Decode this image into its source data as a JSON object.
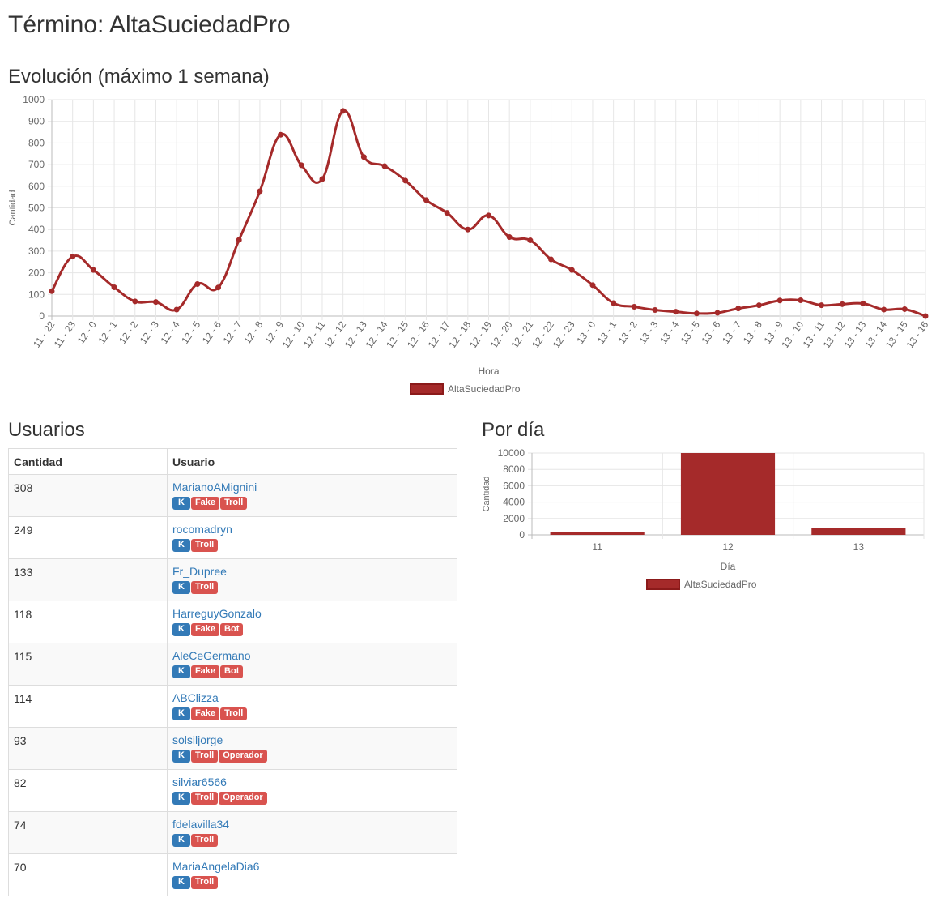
{
  "page": {
    "title": "Término: AltaSuciedadPro",
    "evolution_title": "Evolución (máximo 1 semana)",
    "users_title": "Usuarios",
    "per_day_title": "Por día"
  },
  "colors": {
    "series": "#a52a2a",
    "link": "#337ab7",
    "badge_k": "#337ab7",
    "badge_red": "#d9534f",
    "grid": "#e6e6e6"
  },
  "users_table": {
    "headers": {
      "quantity": "Cantidad",
      "user": "Usuario"
    },
    "rows": [
      {
        "quantity": "308",
        "user": "MarianoAMignini",
        "badges": [
          "K",
          "Fake",
          "Troll"
        ]
      },
      {
        "quantity": "249",
        "user": "rocomadryn",
        "badges": [
          "K",
          "Troll"
        ]
      },
      {
        "quantity": "133",
        "user": "Fr_Dupree",
        "badges": [
          "K",
          "Troll"
        ]
      },
      {
        "quantity": "118",
        "user": "HarreguyGonzalo",
        "badges": [
          "K",
          "Fake",
          "Bot"
        ]
      },
      {
        "quantity": "115",
        "user": "AleCeGermano",
        "badges": [
          "K",
          "Fake",
          "Bot"
        ]
      },
      {
        "quantity": "114",
        "user": "ABClizza",
        "badges": [
          "K",
          "Fake",
          "Troll"
        ]
      },
      {
        "quantity": "93",
        "user": "solsiljorge",
        "badges": [
          "K",
          "Troll",
          "Operador"
        ]
      },
      {
        "quantity": "82",
        "user": "silviar6566",
        "badges": [
          "K",
          "Troll",
          "Operador"
        ]
      },
      {
        "quantity": "74",
        "user": "fdelavilla34",
        "badges": [
          "K",
          "Troll"
        ]
      },
      {
        "quantity": "70",
        "user": "MariaAngelaDia6",
        "badges": [
          "K",
          "Troll"
        ]
      }
    ]
  },
  "chart_data": [
    {
      "type": "line",
      "title": "",
      "xlabel": "Hora",
      "ylabel": "Cantidad",
      "ylim": [
        0,
        1000
      ],
      "yticks": [
        0,
        100,
        200,
        300,
        400,
        500,
        600,
        700,
        800,
        900,
        1000
      ],
      "grid": true,
      "legend": "bottom",
      "categories": [
        "11 - 22",
        "11 - 23",
        "12 - 0",
        "12 - 1",
        "12 - 2",
        "12 - 3",
        "12 - 4",
        "12 - 5",
        "12 - 6",
        "12 - 7",
        "12 - 8",
        "12 - 9",
        "12 - 10",
        "12 - 11",
        "12 - 12",
        "12 - 13",
        "12 - 14",
        "12 - 15",
        "12 - 16",
        "12 - 17",
        "12 - 18",
        "12 - 19",
        "12 - 20",
        "12 - 21",
        "12 - 22",
        "12 - 23",
        "13 - 0",
        "13 - 1",
        "13 - 2",
        "13 - 3",
        "13 - 4",
        "13 - 5",
        "13 - 6",
        "13 - 7",
        "13 - 8",
        "13 - 9",
        "13 - 10",
        "13 - 11",
        "13 - 12",
        "13 - 13",
        "13 - 14",
        "13 - 15",
        "13 - 16"
      ],
      "series": [
        {
          "name": "AltaSuciedadPro",
          "values": [
            115,
            275,
            213,
            133,
            68,
            65,
            30,
            148,
            132,
            352,
            577,
            838,
            697,
            633,
            948,
            735,
            693,
            626,
            536,
            477,
            400,
            465,
            365,
            350,
            262,
            213,
            143,
            60,
            43,
            28,
            20,
            12,
            15,
            35,
            50,
            72,
            73,
            50,
            55,
            58,
            30,
            32,
            0
          ]
        }
      ]
    },
    {
      "type": "bar",
      "title": "",
      "xlabel": "Día",
      "ylabel": "Cantidad",
      "ylim": [
        0,
        10000
      ],
      "yticks": [
        0,
        2000,
        4000,
        6000,
        8000,
        10000
      ],
      "grid": true,
      "legend": "bottom",
      "categories": [
        "11",
        "12",
        "13"
      ],
      "series": [
        {
          "name": "AltaSuciedadPro",
          "values": [
            390,
            10000,
            800
          ]
        }
      ]
    }
  ]
}
